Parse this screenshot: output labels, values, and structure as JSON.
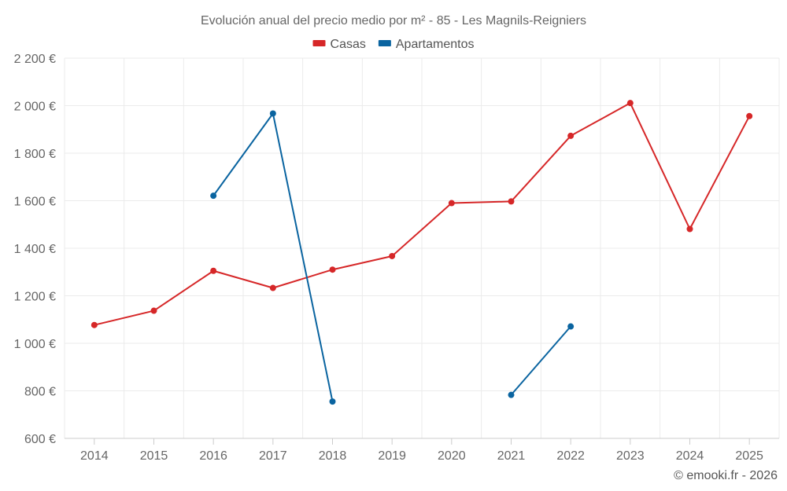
{
  "chart_data": {
    "type": "line",
    "title": "Evolución anual del precio medio por m² - 85 - Les Magnils-Reigniers",
    "xlabel": "",
    "ylabel": "",
    "categories": [
      "2014",
      "2015",
      "2016",
      "2017",
      "2018",
      "2019",
      "2020",
      "2021",
      "2022",
      "2023",
      "2024",
      "2025"
    ],
    "ylim": [
      600,
      2200
    ],
    "yticks": [
      600,
      800,
      1000,
      1200,
      1400,
      1600,
      1800,
      2000,
      2200
    ],
    "ytick_labels": [
      "600 €",
      "800 €",
      "1 000 €",
      "1 200 €",
      "1 400 €",
      "1 600 €",
      "1 800 €",
      "2 000 €",
      "2 200 €"
    ],
    "grid": true,
    "legend_position": "top-center",
    "series": [
      {
        "name": "Casas",
        "color": "#d62728",
        "values": [
          1077,
          1137,
          1305,
          1233,
          1310,
          1367,
          1590,
          1597,
          1873,
          2011,
          1481,
          1956
        ]
      },
      {
        "name": "Apartamentos",
        "color": "#0a64a0",
        "values": [
          null,
          null,
          1621,
          1967,
          755,
          null,
          null,
          783,
          1071,
          null,
          null,
          null
        ]
      }
    ],
    "credit": "© emooki.fr - 2026"
  }
}
